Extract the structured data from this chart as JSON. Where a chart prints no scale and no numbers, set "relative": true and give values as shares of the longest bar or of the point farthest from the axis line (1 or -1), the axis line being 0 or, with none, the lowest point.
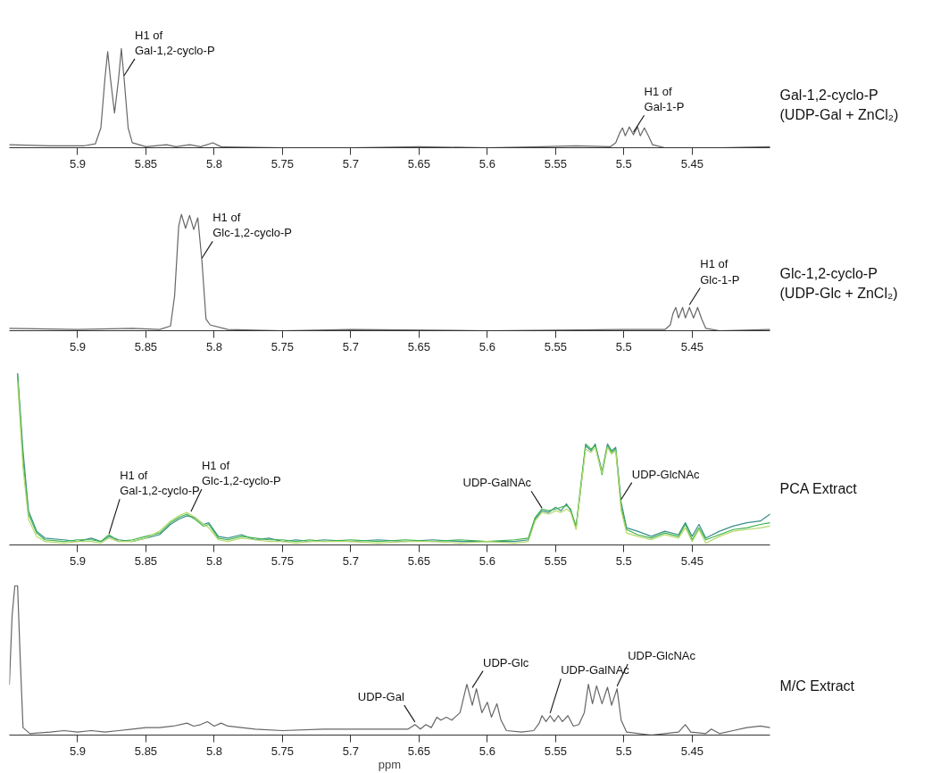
{
  "chart_data": [
    {
      "type": "line",
      "relative": true,
      "xlim": [
        5.95,
        5.393
      ],
      "xticks": [
        5.9,
        5.85,
        5.8,
        5.75,
        5.7,
        5.65,
        5.6,
        5.55,
        5.5,
        5.45
      ],
      "tick_labels": "x",
      "grid": false,
      "series": [
        {
          "color": "#666666",
          "x": [
            5.95,
            5.92,
            5.895,
            5.887,
            5.883,
            5.88,
            5.878,
            5.876,
            5.873,
            5.87,
            5.868,
            5.866,
            5.863,
            5.86,
            5.85,
            5.835,
            5.828,
            5.818,
            5.81,
            5.801,
            5.795,
            5.75,
            5.7,
            5.65,
            5.6,
            5.56,
            5.535,
            5.51,
            5.506,
            5.503,
            5.501,
            5.499,
            5.496,
            5.493,
            5.49,
            5.488,
            5.485,
            5.482,
            5.479,
            5.47,
            5.43,
            5.393
          ],
          "values": [
            0.03,
            0.02,
            0.02,
            0.04,
            0.2,
            0.7,
            0.97,
            0.7,
            0.35,
            0.7,
            1.0,
            0.7,
            0.2,
            0.05,
            0.01,
            0.03,
            0.01,
            0.03,
            0.01,
            0.05,
            0.01,
            0.0,
            0.0,
            0.01,
            0.0,
            0.01,
            0.02,
            0.01,
            0.05,
            0.15,
            0.2,
            0.12,
            0.21,
            0.13,
            0.21,
            0.12,
            0.2,
            0.12,
            0.03,
            0.0,
            0.0,
            0.01
          ]
        }
      ],
      "annotations": [
        {
          "text": "H1 of\nGal-1,2-cyclo-P",
          "x": 5.866,
          "y": 0.7
        },
        {
          "text": "H1 of\nGal-1-P",
          "x": 5.493,
          "y": 0.13
        },
        "Gal-1,2-cyclo-P\n(UDP-Gal + ZnCl₂)"
      ]
    },
    {
      "type": "line",
      "relative": true,
      "xlim": [
        5.95,
        5.393
      ],
      "xticks": [
        5.9,
        5.85,
        5.8,
        5.75,
        5.7,
        5.65,
        5.6,
        5.55,
        5.5,
        5.45
      ],
      "tick_labels": "x",
      "grid": false,
      "series": [
        {
          "color": "#666666",
          "x": [
            5.95,
            5.9,
            5.86,
            5.84,
            5.832,
            5.829,
            5.826,
            5.824,
            5.821,
            5.818,
            5.815,
            5.812,
            5.809,
            5.806,
            5.803,
            5.79,
            5.75,
            5.7,
            5.6,
            5.5,
            5.47,
            5.466,
            5.464,
            5.462,
            5.46,
            5.457,
            5.455,
            5.452,
            5.449,
            5.446,
            5.443,
            5.44,
            5.43,
            5.393
          ],
          "values": [
            0.02,
            0.01,
            0.02,
            0.01,
            0.04,
            0.3,
            0.9,
            1.0,
            0.88,
            0.99,
            0.87,
            0.97,
            0.6,
            0.1,
            0.05,
            0.01,
            0.0,
            0.01,
            0.0,
            0.01,
            0.01,
            0.05,
            0.15,
            0.2,
            0.11,
            0.2,
            0.11,
            0.2,
            0.11,
            0.2,
            0.1,
            0.02,
            0.0,
            0.01
          ]
        }
      ],
      "annotations": [
        {
          "text": "H1 of\nGlc-1,2-cyclo-P",
          "x": 5.809,
          "y": 0.6
        },
        {
          "text": "H1 of\nGlc-1-P",
          "x": 5.452,
          "y": 0.2
        },
        "Glc-1,2-cyclo-P\n(UDP-Glc + ZnCl₂)"
      ]
    },
    {
      "type": "line",
      "relative": true,
      "xlim": [
        5.95,
        5.393
      ],
      "xticks": [
        5.9,
        5.85,
        5.8,
        5.75,
        5.7,
        5.65,
        5.6,
        5.55,
        5.5,
        5.45
      ],
      "tick_labels": "x",
      "grid": false,
      "series": [
        {
          "color": "#3a8f8a",
          "x": [
            5.944,
            5.94,
            5.936,
            5.93,
            5.924,
            5.91,
            5.9,
            5.89,
            5.883,
            5.877,
            5.87,
            5.86,
            5.85,
            5.84,
            5.832,
            5.826,
            5.82,
            5.814,
            5.808,
            5.804,
            5.797,
            5.79,
            5.78,
            5.77,
            5.76,
            5.75,
            5.74,
            5.73,
            5.72,
            5.7,
            5.68,
            5.66,
            5.64,
            5.62,
            5.6,
            5.58,
            5.57,
            5.565,
            5.56,
            5.555,
            5.55,
            5.546,
            5.542,
            5.539,
            5.535,
            5.532,
            5.528,
            5.524,
            5.521,
            5.516,
            5.512,
            5.509,
            5.506,
            5.502,
            5.498,
            5.49,
            5.48,
            5.47,
            5.46,
            5.455,
            5.45,
            5.445,
            5.44,
            5.43,
            5.42,
            5.41,
            5.4,
            5.393
          ],
          "values": [
            1.0,
            0.55,
            0.2,
            0.08,
            0.04,
            0.03,
            0.02,
            0.04,
            0.02,
            0.05,
            0.03,
            0.02,
            0.04,
            0.06,
            0.12,
            0.15,
            0.17,
            0.16,
            0.12,
            0.13,
            0.05,
            0.04,
            0.06,
            0.03,
            0.04,
            0.02,
            0.03,
            0.02,
            0.03,
            0.02,
            0.03,
            0.02,
            0.03,
            0.02,
            0.02,
            0.02,
            0.03,
            0.15,
            0.2,
            0.19,
            0.22,
            0.2,
            0.24,
            0.2,
            0.11,
            0.3,
            0.58,
            0.55,
            0.59,
            0.43,
            0.59,
            0.55,
            0.57,
            0.25,
            0.1,
            0.08,
            0.05,
            0.08,
            0.06,
            0.13,
            0.05,
            0.12,
            0.04,
            0.08,
            0.11,
            0.13,
            0.14,
            0.18
          ]
        },
        {
          "color": "#3cb44a",
          "x": [
            5.944,
            5.94,
            5.936,
            5.93,
            5.924,
            5.91,
            5.9,
            5.89,
            5.883,
            5.877,
            5.87,
            5.86,
            5.85,
            5.84,
            5.832,
            5.826,
            5.82,
            5.814,
            5.808,
            5.804,
            5.797,
            5.79,
            5.78,
            5.77,
            5.76,
            5.75,
            5.74,
            5.73,
            5.72,
            5.7,
            5.68,
            5.66,
            5.64,
            5.62,
            5.6,
            5.58,
            5.57,
            5.565,
            5.56,
            5.555,
            5.55,
            5.546,
            5.542,
            5.539,
            5.535,
            5.532,
            5.528,
            5.524,
            5.521,
            5.516,
            5.512,
            5.509,
            5.506,
            5.502,
            5.498,
            5.49,
            5.48,
            5.47,
            5.46,
            5.455,
            5.45,
            5.445,
            5.44,
            5.43,
            5.42,
            5.41,
            5.4,
            5.393
          ],
          "values": [
            1.0,
            0.5,
            0.18,
            0.07,
            0.03,
            0.02,
            0.03,
            0.03,
            0.02,
            0.06,
            0.02,
            0.03,
            0.05,
            0.07,
            0.13,
            0.16,
            0.18,
            0.15,
            0.11,
            0.12,
            0.04,
            0.03,
            0.05,
            0.04,
            0.03,
            0.03,
            0.02,
            0.03,
            0.02,
            0.03,
            0.02,
            0.03,
            0.02,
            0.03,
            0.02,
            0.03,
            0.04,
            0.16,
            0.21,
            0.2,
            0.21,
            0.22,
            0.23,
            0.21,
            0.1,
            0.32,
            0.59,
            0.56,
            0.58,
            0.41,
            0.58,
            0.54,
            0.56,
            0.22,
            0.09,
            0.06,
            0.04,
            0.07,
            0.05,
            0.12,
            0.03,
            0.1,
            0.03,
            0.06,
            0.09,
            0.1,
            0.12,
            0.13
          ]
        },
        {
          "color": "#b5d96a",
          "x": [
            5.944,
            5.94,
            5.936,
            5.93,
            5.924,
            5.91,
            5.9,
            5.89,
            5.883,
            5.877,
            5.87,
            5.86,
            5.85,
            5.84,
            5.832,
            5.826,
            5.82,
            5.814,
            5.808,
            5.804,
            5.797,
            5.79,
            5.78,
            5.77,
            5.76,
            5.75,
            5.74,
            5.73,
            5.72,
            5.7,
            5.68,
            5.66,
            5.64,
            5.62,
            5.6,
            5.58,
            5.57,
            5.565,
            5.56,
            5.555,
            5.55,
            5.546,
            5.542,
            5.539,
            5.535,
            5.532,
            5.528,
            5.524,
            5.521,
            5.516,
            5.512,
            5.509,
            5.506,
            5.502,
            5.498,
            5.49,
            5.48,
            5.47,
            5.46,
            5.455,
            5.45,
            5.445,
            5.44,
            5.43,
            5.42,
            5.41,
            5.4,
            5.393
          ],
          "values": [
            0.95,
            0.45,
            0.15,
            0.05,
            0.02,
            0.01,
            0.02,
            0.02,
            0.01,
            0.04,
            0.02,
            0.02,
            0.04,
            0.08,
            0.14,
            0.17,
            0.19,
            0.16,
            0.12,
            0.1,
            0.03,
            0.02,
            0.04,
            0.03,
            0.02,
            0.02,
            0.01,
            0.02,
            0.02,
            0.02,
            0.01,
            0.02,
            0.02,
            0.01,
            0.02,
            0.01,
            0.02,
            0.14,
            0.19,
            0.18,
            0.2,
            0.19,
            0.21,
            0.19,
            0.09,
            0.3,
            0.56,
            0.54,
            0.57,
            0.42,
            0.57,
            0.53,
            0.55,
            0.2,
            0.07,
            0.05,
            0.03,
            0.06,
            0.04,
            0.1,
            0.02,
            0.09,
            0.01,
            0.05,
            0.08,
            0.09,
            0.1,
            0.11
          ]
        }
      ],
      "annotations": [
        {
          "text": "H1 of\nGal-1,2-cyclo-P",
          "x": 5.877,
          "y": 0.05
        },
        {
          "text": "H1 of\nGlc-1,2-cyclo-P",
          "x": 5.817,
          "y": 0.18
        },
        {
          "text": "UDP-GalNAc",
          "x": 5.56,
          "y": 0.2
        },
        {
          "text": "UDP-GlcNAc",
          "x": 5.502,
          "y": 0.25
        },
        "PCA Extract"
      ]
    },
    {
      "type": "line",
      "relative": true,
      "xlim": [
        5.95,
        5.393
      ],
      "xticks": [
        5.9,
        5.85,
        5.8,
        5.75,
        5.7,
        5.65,
        5.6,
        5.55,
        5.5,
        5.45
      ],
      "xlabel": "ppm",
      "tick_labels": "x",
      "grid": false,
      "series": [
        {
          "color": "#666666",
          "x": [
            5.95,
            5.948,
            5.946,
            5.944,
            5.942,
            5.94,
            5.935,
            5.92,
            5.91,
            5.9,
            5.89,
            5.88,
            5.87,
            5.86,
            5.85,
            5.84,
            5.83,
            5.82,
            5.815,
            5.81,
            5.805,
            5.8,
            5.795,
            5.79,
            5.78,
            5.77,
            5.75,
            5.72,
            5.7,
            5.68,
            5.665,
            5.658,
            5.653,
            5.649,
            5.645,
            5.641,
            5.637,
            5.634,
            5.63,
            5.626,
            5.62,
            5.615,
            5.611,
            5.608,
            5.604,
            5.6,
            5.597,
            5.593,
            5.59,
            5.586,
            5.575,
            5.566,
            5.562,
            5.56,
            5.557,
            5.554,
            5.551,
            5.548,
            5.545,
            5.541,
            5.537,
            5.533,
            5.529,
            5.526,
            5.523,
            5.52,
            5.516,
            5.512,
            5.509,
            5.505,
            5.502,
            5.498,
            5.48,
            5.47,
            5.46,
            5.455,
            5.451,
            5.44,
            5.436,
            5.43,
            5.42,
            5.41,
            5.4,
            5.393
          ],
          "values": [
            0.34,
            0.8,
            1.0,
            1.0,
            0.5,
            0.05,
            0.01,
            0.02,
            0.03,
            0.02,
            0.03,
            0.02,
            0.03,
            0.04,
            0.05,
            0.05,
            0.06,
            0.08,
            0.06,
            0.07,
            0.09,
            0.06,
            0.08,
            0.06,
            0.05,
            0.04,
            0.03,
            0.04,
            0.04,
            0.04,
            0.04,
            0.04,
            0.07,
            0.04,
            0.07,
            0.05,
            0.12,
            0.1,
            0.12,
            0.1,
            0.15,
            0.34,
            0.2,
            0.31,
            0.15,
            0.22,
            0.12,
            0.21,
            0.1,
            0.03,
            0.02,
            0.03,
            0.08,
            0.13,
            0.09,
            0.13,
            0.09,
            0.13,
            0.09,
            0.13,
            0.06,
            0.07,
            0.15,
            0.34,
            0.21,
            0.33,
            0.21,
            0.32,
            0.2,
            0.31,
            0.1,
            0.02,
            0.0,
            0.01,
            0.02,
            0.07,
            0.02,
            0.01,
            0.04,
            0.01,
            0.03,
            0.05,
            0.06,
            0.05
          ]
        }
      ],
      "annotations": [
        {
          "text": "UDP-Gal",
          "x": 5.653,
          "y": 0.07
        },
        {
          "text": "UDP-Glc",
          "x": 5.611,
          "y": 0.3
        },
        {
          "text": "UDP-GalNAc",
          "x": 5.554,
          "y": 0.13
        },
        {
          "text": "UDP-GlcNAc",
          "x": 5.505,
          "y": 0.31
        },
        "M/C Extract"
      ]
    }
  ]
}
